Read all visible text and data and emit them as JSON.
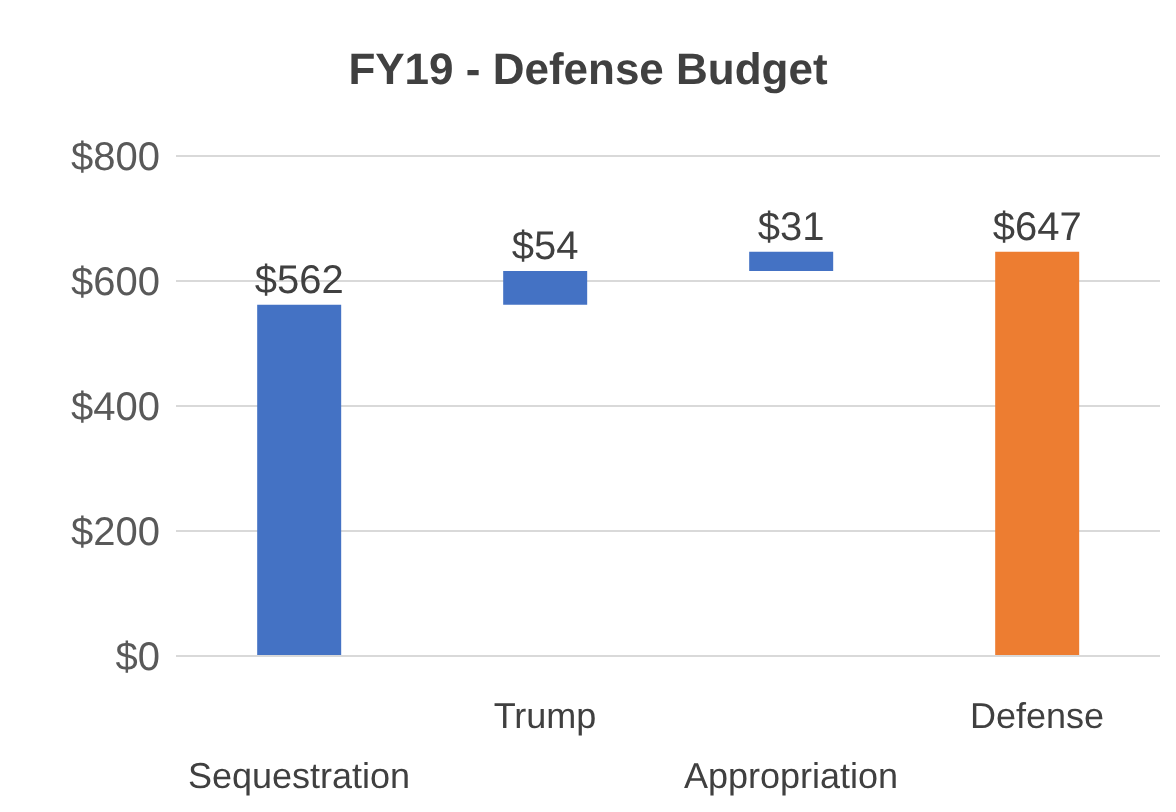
{
  "chart_data": {
    "type": "bar",
    "title": "FY19 - Defense Budget",
    "categories": [
      "Sequestration",
      "Trump",
      "Appropriation",
      "Defense"
    ],
    "values": [
      562,
      54,
      31,
      647
    ],
    "base": [
      0,
      562,
      616,
      0
    ],
    "colors": [
      "#4472c4",
      "#4472c4",
      "#4472c4",
      "#ed7d31"
    ],
    "value_labels": [
      "$562",
      "$54",
      "$31",
      "$647"
    ],
    "ylim": [
      0,
      800
    ],
    "yticks": [
      {
        "value": 0,
        "label": "$0"
      },
      {
        "value": 200,
        "label": "$200"
      },
      {
        "value": 400,
        "label": "$400"
      },
      {
        "value": 600,
        "label": "$600"
      },
      {
        "value": 800,
        "label": "$800"
      }
    ],
    "grid": "y"
  }
}
